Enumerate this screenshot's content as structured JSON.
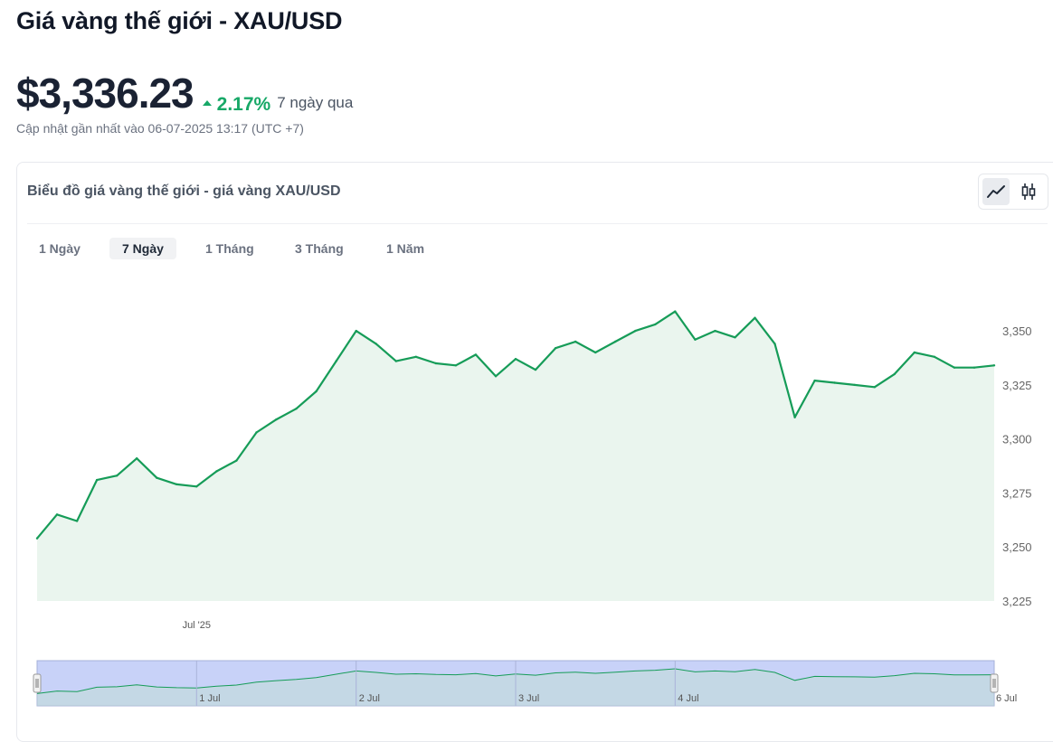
{
  "header": {
    "title": "Giá vàng thế giới - XAU/USD",
    "price": "$3,336.23",
    "change": "2.17%",
    "change_period": "7 ngày qua",
    "updated": "Cập nhật gần nhất vào 06-07-2025 13:17 (UTC +7)"
  },
  "card": {
    "title": "Biểu đồ giá vàng thế giới - giá vàng XAU/USD",
    "chart_types": [
      {
        "icon": "line-chart-icon",
        "active": true
      },
      {
        "icon": "candlestick-chart-icon",
        "active": false
      }
    ]
  },
  "tabs": [
    {
      "label": "1 Ngày",
      "active": false
    },
    {
      "label": "7 Ngày",
      "active": true
    },
    {
      "label": "1 Tháng",
      "active": false
    },
    {
      "label": "3 Tháng",
      "active": false
    },
    {
      "label": "1 Năm",
      "active": false
    }
  ],
  "colors": {
    "line": "#169c58",
    "area": "#eaf5ee",
    "navigator_fill": "#c8d2f8",
    "navigator_border": "#a5b0d8",
    "positive": "#17a867"
  },
  "chart_data": {
    "type": "area",
    "series": [
      {
        "x": [
          "2025-06-30 00:00",
          "2025-06-30 03:00",
          "2025-06-30 06:00",
          "2025-06-30 09:00",
          "2025-06-30 12:00",
          "2025-06-30 15:00",
          "2025-06-30 18:00",
          "2025-06-30 21:00",
          "2025-07-01 00:00",
          "2025-07-01 03:00",
          "2025-07-01 06:00",
          "2025-07-01 09:00",
          "2025-07-01 12:00",
          "2025-07-01 15:00",
          "2025-07-01 18:00",
          "2025-07-01 21:00",
          "2025-07-02 00:00",
          "2025-07-02 03:00",
          "2025-07-02 06:00",
          "2025-07-02 09:00",
          "2025-07-02 12:00",
          "2025-07-02 15:00",
          "2025-07-02 18:00",
          "2025-07-02 21:00",
          "2025-07-03 00:00",
          "2025-07-03 03:00",
          "2025-07-03 06:00",
          "2025-07-03 09:00",
          "2025-07-03 12:00",
          "2025-07-03 15:00",
          "2025-07-03 18:00",
          "2025-07-03 21:00",
          "2025-07-04 00:00",
          "2025-07-04 03:00",
          "2025-07-04 06:00",
          "2025-07-04 09:00",
          "2025-07-04 12:00",
          "2025-07-04 15:00",
          "2025-07-04 18:00",
          "2025-07-04 21:00",
          "2025-07-05 00:00",
          "2025-07-05 03:00",
          "2025-07-05 06:00",
          "2025-07-05 09:00",
          "2025-07-05 12:00",
          "2025-07-05 15:00",
          "2025-07-05 18:00",
          "2025-07-05 21:00",
          "2025-07-06 00:00"
        ],
        "values": [
          3254,
          3265,
          3262,
          3281,
          3283,
          3291,
          3282,
          3279,
          3278,
          3285,
          3290,
          3303,
          3309,
          3314,
          3322,
          3336,
          3350,
          3344,
          3336,
          3338,
          3335,
          3334,
          3339,
          3329,
          3337,
          3332,
          3342,
          3345,
          3340,
          3345,
          3350,
          3353,
          3359,
          3346,
          3350,
          3347,
          3356,
          3344,
          3310,
          3327,
          3326,
          3325,
          3324,
          3330,
          3340,
          3338,
          3333,
          3333,
          3334
        ]
      }
    ],
    "yticks": [
      3225,
      3250,
      3275,
      3300,
      3325,
      3350
    ],
    "ylim": [
      3225,
      3363
    ],
    "x_tick_labels": [
      "Jul '25"
    ],
    "grid": false,
    "navigator": {
      "labels": [
        "1 Jul",
        "2 Jul",
        "3 Jul",
        "4 Jul",
        "6 Jul"
      ]
    }
  }
}
